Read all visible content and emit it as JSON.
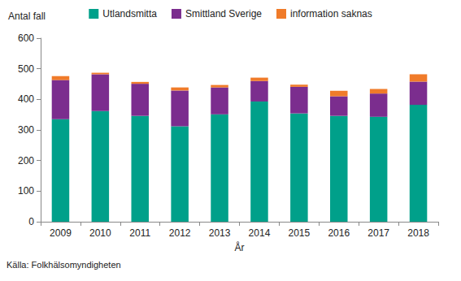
{
  "chart_data": {
    "type": "bar",
    "stacked": true,
    "x_label": "År",
    "y_label": "Antal fall",
    "annotations": [
      "Källa: Folkhälsomyndigheten"
    ],
    "categories": [
      "2009",
      "2010",
      "2011",
      "2012",
      "2013",
      "2014",
      "2015",
      "2016",
      "2017",
      "2018"
    ],
    "series": [
      {
        "name": "Utlandsmitta",
        "color": "#00A08A",
        "values": [
          335,
          362,
          346,
          312,
          351,
          393,
          354,
          346,
          343,
          382
        ]
      },
      {
        "name": "Smittland Sverige",
        "color": "#7B2D8E",
        "values": [
          128,
          120,
          105,
          117,
          88,
          67,
          87,
          64,
          76,
          76
        ]
      },
      {
        "name": "information saknas",
        "color": "#F07B2A",
        "values": [
          13,
          5,
          6,
          10,
          8,
          11,
          7,
          18,
          15,
          24
        ]
      }
    ],
    "ylim": [
      0,
      600
    ],
    "yticks": [
      0,
      100,
      200,
      300,
      400,
      500,
      600
    ],
    "grid": false,
    "legend": "top"
  }
}
